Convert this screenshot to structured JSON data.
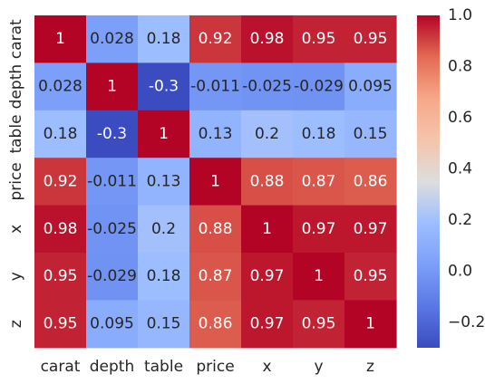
{
  "chart_data": {
    "type": "heatmap",
    "row_labels": [
      "carat",
      "depth",
      "table",
      "price",
      "x",
      "y",
      "z"
    ],
    "col_labels": [
      "carat",
      "depth",
      "table",
      "price",
      "x",
      "y",
      "z"
    ],
    "values": [
      [
        1,
        0.028,
        0.18,
        0.92,
        0.98,
        0.95,
        0.95
      ],
      [
        0.028,
        1,
        -0.3,
        -0.011,
        -0.025,
        -0.029,
        0.095
      ],
      [
        0.18,
        -0.3,
        1,
        0.13,
        0.2,
        0.18,
        0.15
      ],
      [
        0.92,
        -0.011,
        0.13,
        1,
        0.88,
        0.87,
        0.86
      ],
      [
        0.98,
        -0.025,
        0.2,
        0.88,
        1,
        0.97,
        0.97
      ],
      [
        0.95,
        -0.029,
        0.18,
        0.87,
        0.97,
        1,
        0.95
      ],
      [
        0.95,
        0.095,
        0.15,
        0.86,
        0.97,
        0.95,
        1
      ]
    ],
    "annotations": [
      [
        "1",
        "0.028",
        "0.18",
        "0.92",
        "0.98",
        "0.95",
        "0.95"
      ],
      [
        "0.028",
        "1",
        "-0.3",
        "-0.011",
        "-0.025",
        "-0.029",
        "0.095"
      ],
      [
        "0.18",
        "-0.3",
        "1",
        "0.13",
        "0.2",
        "0.18",
        "0.15"
      ],
      [
        "0.92",
        "-0.011",
        "0.13",
        "1",
        "0.88",
        "0.87",
        "0.86"
      ],
      [
        "0.98",
        "-0.025",
        "0.2",
        "0.88",
        "1",
        "0.97",
        "0.97"
      ],
      [
        "0.95",
        "-0.029",
        "0.18",
        "0.87",
        "0.97",
        "1",
        "0.95"
      ],
      [
        "0.95",
        "0.095",
        "0.15",
        "0.86",
        "0.97",
        "0.95",
        "1"
      ]
    ],
    "colormap": "coolwarm",
    "vmin": -0.3,
    "vmax": 1.0,
    "colorbar_ticks": [
      "1.0",
      "0.8",
      "0.6",
      "0.4",
      "0.2",
      "0.0",
      "−0.2"
    ],
    "colorbar_tick_values": [
      1.0,
      0.8,
      0.6,
      0.4,
      0.2,
      0.0,
      -0.2
    ],
    "grid": false
  }
}
